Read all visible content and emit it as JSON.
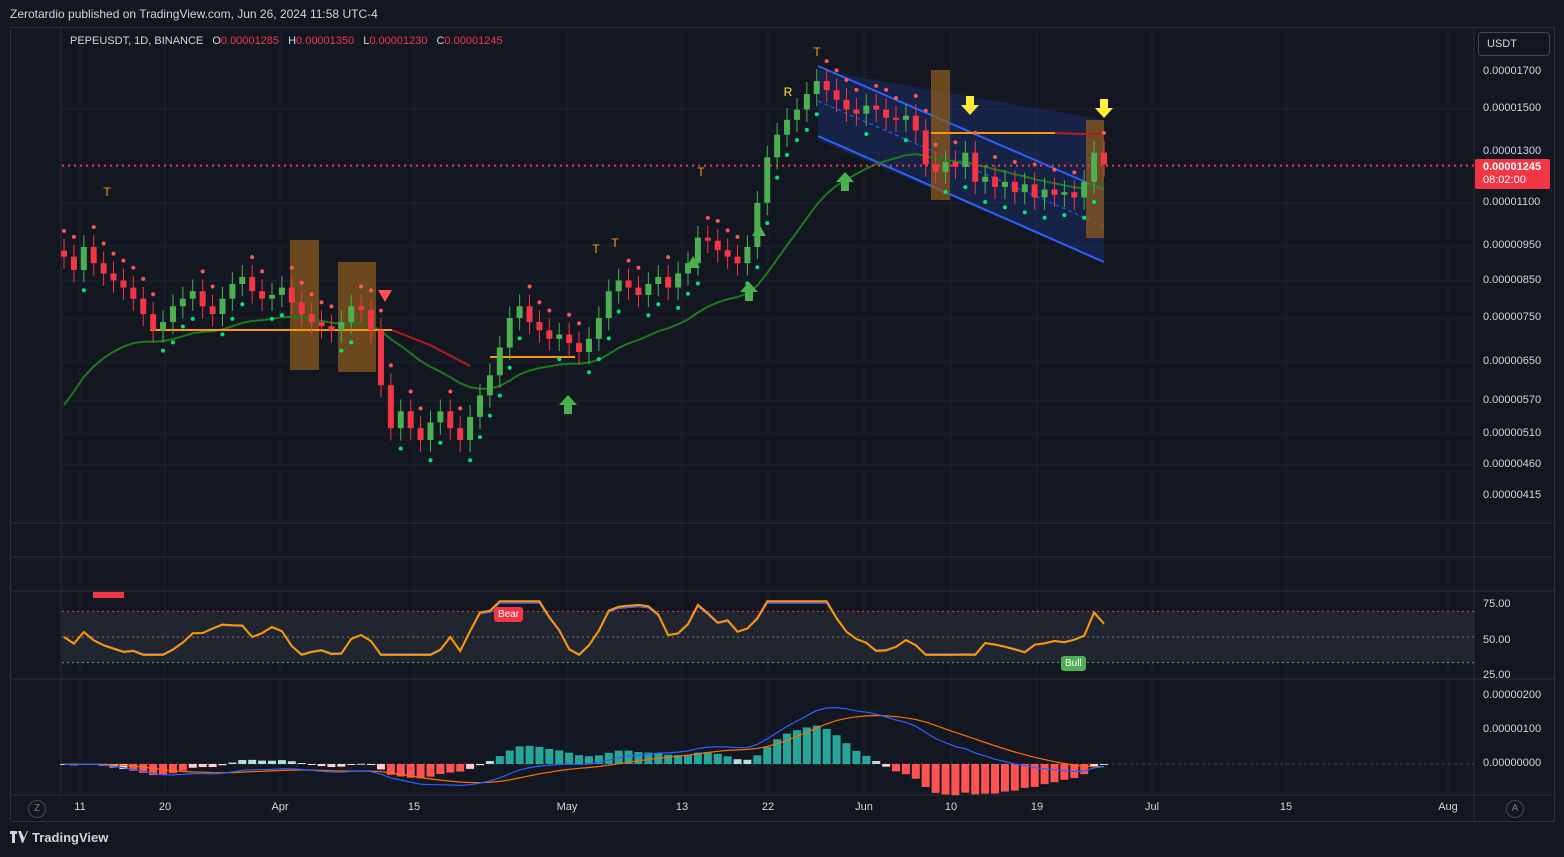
{
  "header": {
    "published": "Zerotardio published on TradingView.com, Jun 26, 2024 11:58 UTC-4"
  },
  "symbol": {
    "label": "PEPEUSDT, 1D, BINANCE",
    "o_key": "O",
    "o": "0.00001285",
    "h_key": "H",
    "h": "0.00001350",
    "l_key": "L",
    "l": "0.00001230",
    "c_key": "C",
    "c": "0.00001245"
  },
  "currency_button": "USDT",
  "price_axis": [
    "0.00001700",
    "0.00001500",
    "0.00001300",
    "0.00001100",
    "0.00000950",
    "0.00000850",
    "0.00000750",
    "0.00000650",
    "0.00000570",
    "0.00000510",
    "0.00000460",
    "0.00000415"
  ],
  "last_price": {
    "value": "0.00001245",
    "countdown": "08:02:00"
  },
  "rsi_axis": [
    "75.00",
    "50.00",
    "25.00"
  ],
  "macd_axis": [
    "0.00000200",
    "0.00000100",
    "0.00000000"
  ],
  "time_axis": [
    "11",
    "20",
    "Apr",
    "15",
    "May",
    "13",
    "22",
    "Jun",
    "10",
    "19",
    "Jul",
    "15",
    "Aug"
  ],
  "signals": {
    "bear": "Bear",
    "bull": "Bull",
    "t": "T",
    "r": "R"
  },
  "buttons": {
    "goto_start": "Z",
    "auto_scale": "A"
  },
  "brand": "TradingView",
  "colors": {
    "up": "#26a69a",
    "down": "#f23645",
    "ema": "#1b7a1b",
    "orange": "#ff9800",
    "channel": "#2962ff",
    "bg": "#131722"
  },
  "chart_data": {
    "type": "candlestick",
    "symbol": "PEPEUSDT",
    "interval": "1D",
    "exchange": "BINANCE",
    "x_ticks": [
      "11",
      "20",
      "Apr",
      "15",
      "May",
      "13",
      "22",
      "Jun",
      "10",
      "19",
      "Jul",
      "15",
      "Aug"
    ],
    "y_ticks": [
      1.7e-05,
      1.5e-05,
      1.3e-05,
      1.1e-05,
      9.5e-06,
      8.5e-06,
      7.5e-06,
      6.5e-06,
      5.7e-06,
      5.1e-06,
      4.6e-06,
      4.15e-06
    ],
    "y_scale": "log",
    "last": {
      "open": 1.285e-05,
      "high": 1.35e-05,
      "low": 1.23e-05,
      "close": 1.245e-05
    },
    "close_series": [
      9.2e-06,
      8.8e-06,
      9.5e-06,
      9e-06,
      8.7e-06,
      8.5e-06,
      8.3e-06,
      8e-06,
      7.6e-06,
      7.2e-06,
      7.4e-06,
      7.8e-06,
      8e-06,
      8.2e-06,
      7.8e-06,
      7.6e-06,
      8e-06,
      8.4e-06,
      8.6e-06,
      8.2e-06,
      8e-06,
      8.1e-06,
      8.3e-06,
      7.9e-06,
      7.6e-06,
      7.4e-06,
      7.3e-06,
      7.2e-06,
      7.4e-06,
      7.8e-06,
      7.7e-06,
      7.2e-06,
      6e-06,
      5.2e-06,
      5.5e-06,
      5.2e-06,
      5e-06,
      5.3e-06,
      5.5e-06,
      5.2e-06,
      5e-06,
      5.4e-06,
      5.8e-06,
      6.2e-06,
      6.8e-06,
      7.5e-06,
      7.8e-06,
      7.4e-06,
      7.2e-06,
      7e-06,
      7.1e-06,
      6.9e-06,
      6.7e-06,
      7e-06,
      7.5e-06,
      8.2e-06,
      8.5e-06,
      8.3e-06,
      8.1e-06,
      8.4e-06,
      8.6e-06,
      8.3e-06,
      8.7e-06,
      9e-06,
      9.8e-06,
      9.7e-06,
      9.4e-06,
      9.2e-06,
      9e-06,
      9.5e-06,
      1.1e-05,
      1.28e-05,
      1.38e-05,
      1.45e-05,
      1.5e-05,
      1.58e-05,
      1.65e-05,
      1.6e-05,
      1.55e-05,
      1.5e-05,
      1.48e-05,
      1.52e-05,
      1.5e-05,
      1.46e-05,
      1.45e-05,
      1.47e-05,
      1.4e-05,
      1.25e-05,
      1.22e-05,
      1.26e-05,
      1.24e-05,
      1.3e-05,
      1.18e-05,
      1.2e-05,
      1.16e-05,
      1.18e-05,
      1.14e-05,
      1.17e-05,
      1.12e-05,
      1.15e-05,
      1.13e-05,
      1.14e-05,
      1.12e-05,
      1.18e-05,
      1.3e-05,
      1.25e-05
    ],
    "rsi": {
      "overbought": 70,
      "oversold": 30,
      "mid": 50,
      "last": 55
    },
    "macd": {
      "last_hist": 0.0
    }
  }
}
